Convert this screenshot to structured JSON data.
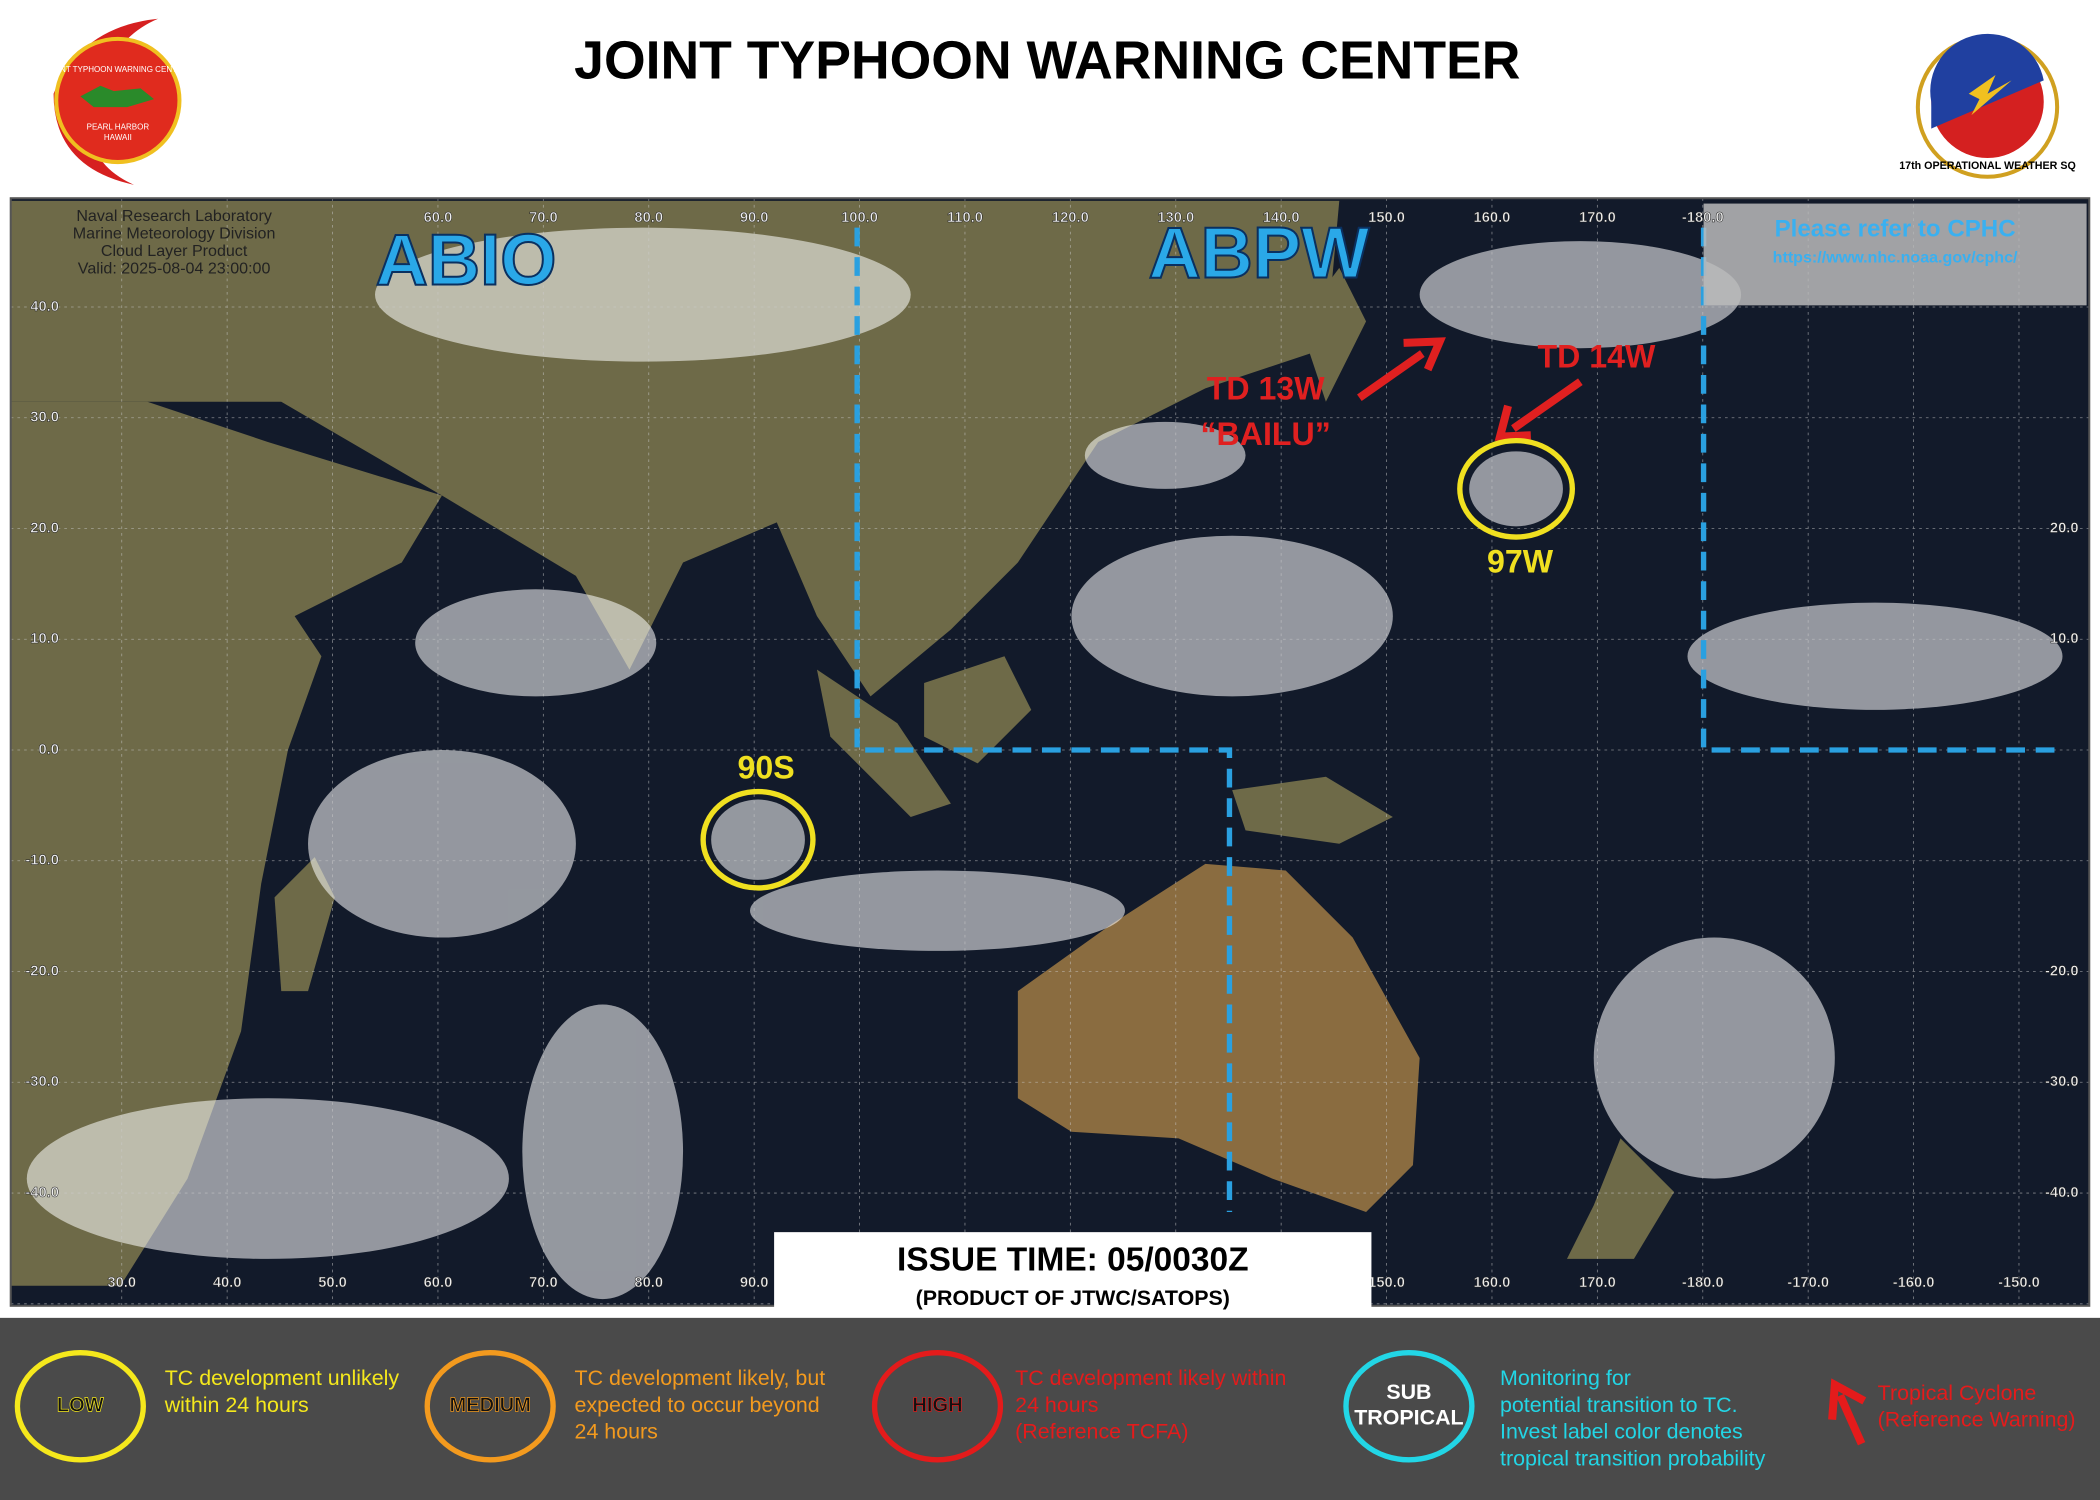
{
  "header": {
    "title": "JOINT TYPHOON WARNING CENTER",
    "left_logo": [
      "JOINT TYPHOON WARNING CENTER",
      "PEARL HARBOR",
      "HAWAII"
    ],
    "right_logo": "17th OPERATIONAL WEATHER SQ"
  },
  "map": {
    "source": [
      "Naval Research Laboratory",
      "Marine Meteorology Division",
      "Cloud Layer Product",
      "Valid: 2025-08-04 23:00:00"
    ],
    "regions": [
      "ABIO",
      "ABPW"
    ],
    "cphc": {
      "title": "Please refer to CPHC",
      "url": "https://www.nhc.noaa.gov/cphc/"
    },
    "systems": {
      "td13w": "TD 13W",
      "td13w_name": "“BAILU”",
      "td14w": "TD 14W",
      "invest_97w": "97W",
      "invest_90s": "90S"
    },
    "top_lon_labels": [
      "60.0",
      "70.0",
      "80.0",
      "90.0",
      "100.0",
      "110.0",
      "120.0",
      "130.0",
      "140.0",
      "150.0",
      "160.0",
      "170.0",
      "-180.0"
    ],
    "bottom_lon_labels": [
      "30.0",
      "40.0",
      "50.0",
      "60.0",
      "70.0",
      "80.0",
      "90.0",
      "150.0",
      "160.0",
      "170.0",
      "-180.0",
      "-170.0",
      "-160.0",
      "-150.0"
    ],
    "left_lat_labels": [
      "40.0",
      "30.0",
      "20.0",
      "10.0",
      "0.0",
      "-10.0",
      "-20.0",
      "-30.0",
      "-40.0"
    ],
    "right_lat_labels": [
      "20.0",
      "10.0",
      "-20.0",
      "-30.0",
      "-40.0"
    ]
  },
  "issue": {
    "time": "ISSUE TIME: 05/0030Z",
    "product": "(PRODUCT OF JTWC/SATOPS)"
  },
  "legend": [
    {
      "label": [
        "LOW"
      ],
      "text": [
        "TC development  unlikely",
        "within 24 hours"
      ]
    },
    {
      "label": [
        "MEDIUM"
      ],
      "text": [
        "TC development likely, but",
        "expected to occur beyond",
        "24 hours"
      ]
    },
    {
      "label": [
        "HIGH"
      ],
      "text": [
        "TC development likely within",
        "24 hours",
        "(Reference TCFA)"
      ]
    },
    {
      "label": [
        "SUB",
        "TROPICAL"
      ],
      "text": [
        "Monitoring  for",
        "potential transition to TC.",
        "Invest label color denotes",
        "tropical transition probability"
      ]
    },
    {
      "label": [],
      "text": [
        "Tropical Cyclone",
        "(Reference Warning)"
      ]
    }
  ]
}
